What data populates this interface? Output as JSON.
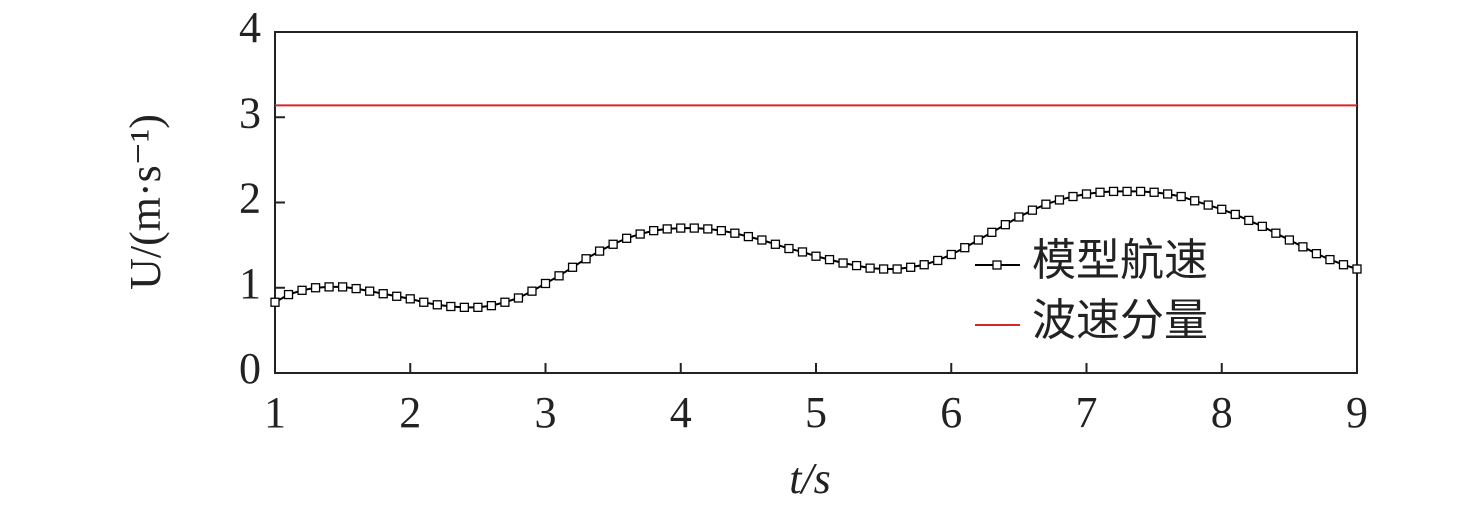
{
  "chart_data": {
    "type": "line",
    "xlabel": "t/s",
    "ylabel": "U/(m·s⁻¹)",
    "xlim": [
      1,
      9
    ],
    "xticks": [
      1,
      2,
      3,
      4,
      5,
      6,
      7,
      8,
      9
    ],
    "ylim": [
      0,
      4
    ],
    "yticks": [
      0,
      1,
      2,
      3,
      4
    ],
    "legend": "lower right",
    "series": [
      {
        "name": "模型航速",
        "color": "#000000",
        "marker": "square",
        "x": [
          1.0,
          1.1,
          1.2,
          1.3,
          1.4,
          1.5,
          1.6,
          1.7,
          1.8,
          1.9,
          2.0,
          2.1,
          2.2,
          2.3,
          2.4,
          2.5,
          2.6,
          2.7,
          2.8,
          2.9,
          3.0,
          3.1,
          3.2,
          3.3,
          3.4,
          3.5,
          3.6,
          3.7,
          3.8,
          3.9,
          4.0,
          4.1,
          4.2,
          4.3,
          4.4,
          4.5,
          4.6,
          4.7,
          4.8,
          4.9,
          5.0,
          5.1,
          5.2,
          5.3,
          5.4,
          5.5,
          5.6,
          5.7,
          5.8,
          5.9,
          6.0,
          6.1,
          6.2,
          6.3,
          6.4,
          6.5,
          6.6,
          6.7,
          6.8,
          6.9,
          7.0,
          7.1,
          7.2,
          7.3,
          7.4,
          7.5,
          7.6,
          7.7,
          7.8,
          7.9,
          8.0,
          8.1,
          8.2,
          8.3,
          8.4,
          8.5,
          8.6,
          8.7,
          8.8,
          8.9,
          9.0
        ],
        "values": [
          0.83,
          0.92,
          0.97,
          1.0,
          1.01,
          1.01,
          0.99,
          0.96,
          0.93,
          0.9,
          0.87,
          0.83,
          0.8,
          0.78,
          0.77,
          0.77,
          0.79,
          0.83,
          0.88,
          0.96,
          1.05,
          1.14,
          1.24,
          1.34,
          1.43,
          1.51,
          1.58,
          1.63,
          1.67,
          1.69,
          1.7,
          1.7,
          1.69,
          1.67,
          1.64,
          1.6,
          1.56,
          1.51,
          1.46,
          1.42,
          1.37,
          1.33,
          1.29,
          1.26,
          1.23,
          1.22,
          1.22,
          1.24,
          1.27,
          1.32,
          1.39,
          1.47,
          1.56,
          1.65,
          1.74,
          1.83,
          1.91,
          1.98,
          2.03,
          2.07,
          2.1,
          2.12,
          2.13,
          2.13,
          2.13,
          2.12,
          2.1,
          2.07,
          2.02,
          1.97,
          1.92,
          1.86,
          1.79,
          1.72,
          1.64,
          1.56,
          1.48,
          1.4,
          1.33,
          1.27,
          1.22
        ]
      },
      {
        "name": "波速分量",
        "color": "#d62728",
        "marker": "none",
        "x": [
          1,
          9
        ],
        "values": [
          3.14,
          3.14
        ]
      }
    ]
  }
}
